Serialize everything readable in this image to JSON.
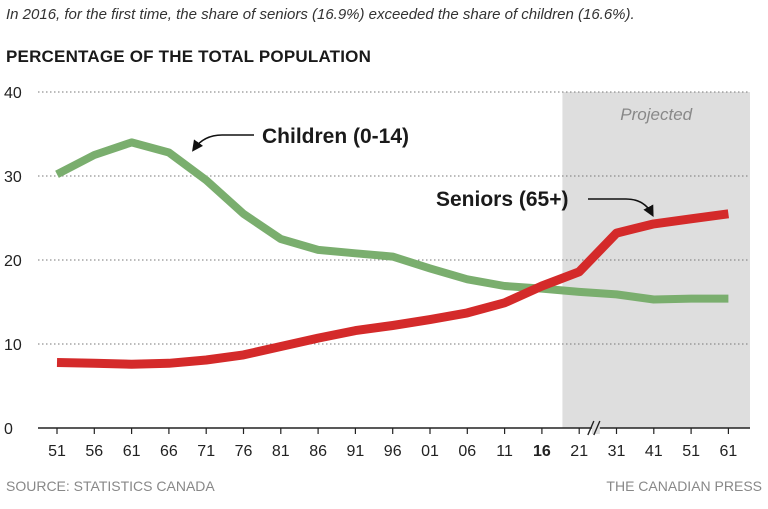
{
  "subtitle": "In 2016, for the first time, the share of seniors (16.9%) exceeded the share of children (16.6%).",
  "heading": "PERCENTAGE OF THE TOTAL POPULATION",
  "source": "SOURCE: STATISTICS CANADA",
  "credit": "THE CANADIAN PRESS",
  "chart_data": {
    "type": "line",
    "categories": [
      "51",
      "56",
      "61",
      "66",
      "71",
      "76",
      "81",
      "86",
      "91",
      "96",
      "01",
      "06",
      "11",
      "16",
      "21",
      "31",
      "41",
      "51",
      "61"
    ],
    "highlight_category": "16",
    "axis_break_after": "21",
    "ylim": [
      0,
      40
    ],
    "yticks": [
      0,
      10,
      20,
      30,
      40
    ],
    "grid": true,
    "projected_region": {
      "label": "Projected",
      "from": "21",
      "to": "61",
      "color": "#dedede"
    },
    "series": [
      {
        "name": "Children (0-14)",
        "color": "#7aae6e",
        "values": [
          30.2,
          32.5,
          34.0,
          32.8,
          29.5,
          25.5,
          22.5,
          21.2,
          20.8,
          20.4,
          19.0,
          17.7,
          16.9,
          16.6,
          16.2,
          15.9,
          15.3,
          15.4,
          15.4
        ]
      },
      {
        "name": "Seniors (65+)",
        "color": "#d42a2a",
        "values": [
          7.8,
          7.7,
          7.6,
          7.7,
          8.1,
          8.7,
          9.7,
          10.7,
          11.6,
          12.2,
          12.9,
          13.7,
          14.9,
          16.9,
          18.6,
          23.2,
          24.3,
          24.9,
          25.5
        ]
      }
    ]
  }
}
